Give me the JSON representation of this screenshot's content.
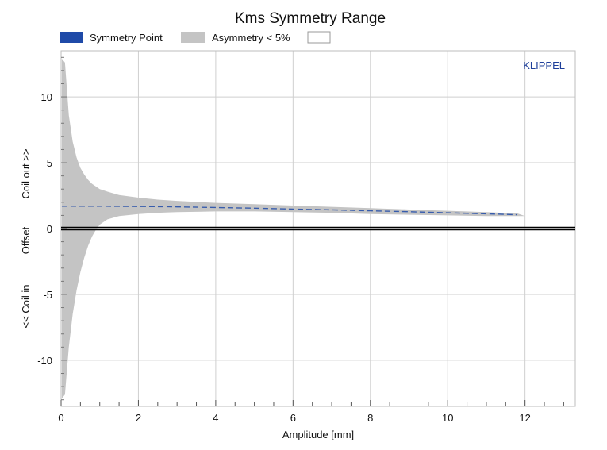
{
  "chart_data": {
    "type": "area",
    "title": "Kms Symmetry Range",
    "xlabel": "Amplitude [mm]",
    "ylabel_parts": [
      "<< Coil in",
      "Offset",
      "Coil out >>"
    ],
    "brand": "KLIPPEL",
    "xlim": [
      0,
      13.3
    ],
    "ylim": [
      -13.5,
      13.5
    ],
    "xticks": [
      0,
      2,
      4,
      6,
      8,
      10,
      12
    ],
    "xtick_labels": [
      "0",
      "2",
      "4",
      "6",
      "8",
      "10",
      "12"
    ],
    "yticks": [
      -10,
      -5,
      0,
      5,
      10
    ],
    "ytick_labels": [
      "-10",
      "-5",
      "0",
      "5",
      "10"
    ],
    "grid": true,
    "legend": [
      {
        "label": "Symmetry Point",
        "color": "#1f4aa8"
      },
      {
        "label": "Asymmetry < 5%",
        "color": "#c4c4c4"
      },
      {
        "label": "",
        "color": "#ffffff"
      }
    ],
    "series": [
      {
        "name": "Asymmetry < 5%",
        "kind": "band",
        "color": "#c4c4c4",
        "x": [
          0.02,
          0.1,
          0.2,
          0.3,
          0.4,
          0.5,
          0.6,
          0.7,
          0.8,
          0.9,
          1.0,
          1.2,
          1.5,
          2.0,
          2.5,
          3.0,
          4.0,
          5.0,
          6.0,
          7.0,
          8.0,
          9.0,
          10.0,
          11.0,
          11.8,
          12.0
        ],
        "upper": [
          12.9,
          12.6,
          8.6,
          6.6,
          5.4,
          4.6,
          4.1,
          3.7,
          3.4,
          3.2,
          3.0,
          2.8,
          2.55,
          2.35,
          2.2,
          2.1,
          1.95,
          1.85,
          1.75,
          1.65,
          1.55,
          1.45,
          1.35,
          1.25,
          1.15,
          0.95
        ],
        "lower": [
          -12.9,
          -12.6,
          -9.0,
          -6.5,
          -4.7,
          -3.3,
          -2.2,
          -1.3,
          -0.6,
          -0.1,
          0.3,
          0.7,
          0.95,
          1.1,
          1.2,
          1.25,
          1.3,
          1.3,
          1.25,
          1.2,
          1.1,
          1.05,
          1.0,
          0.95,
          0.95,
          0.95
        ]
      },
      {
        "name": "Symmetry Point",
        "kind": "line",
        "color": "#1f4aa8",
        "x": [
          0.02,
          1.0,
          2.0,
          3.0,
          4.0,
          5.0,
          6.0,
          7.0,
          8.0,
          9.0,
          10.0,
          11.0,
          11.8
        ],
        "y": [
          1.7,
          1.7,
          1.68,
          1.65,
          1.6,
          1.55,
          1.48,
          1.42,
          1.35,
          1.28,
          1.2,
          1.12,
          1.05
        ]
      }
    ],
    "reference_line": {
      "y": 0,
      "color": "#000000"
    }
  }
}
